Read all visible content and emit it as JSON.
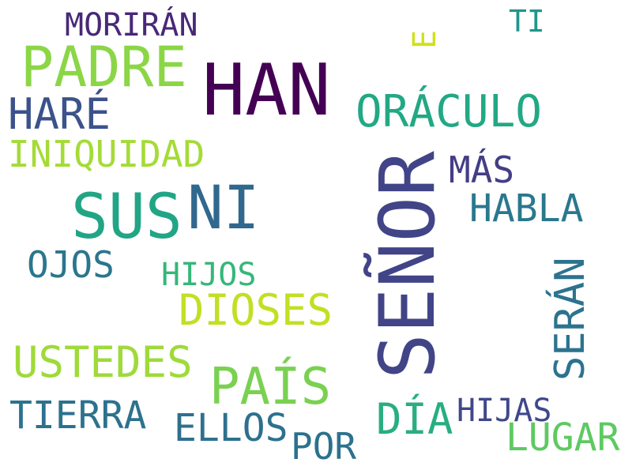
{
  "words": {
    "senor": {
      "text": "SEÑOR",
      "color": "#414487"
    },
    "han": {
      "text": "HAN",
      "color": "#440154"
    },
    "ni": {
      "text": "NI",
      "color": "#31688e"
    },
    "sus": {
      "text": "SUS",
      "color": "#21a585"
    },
    "padre": {
      "text": "PADRE",
      "color": "#8bd646"
    },
    "pais": {
      "text": "PAÍS",
      "color": "#7ad151"
    },
    "oraculo": {
      "text": "ORÁCULO",
      "color": "#22a884"
    },
    "dioses": {
      "text": "DIOSES",
      "color": "#c2df23"
    },
    "ustedes": {
      "text": "USTEDES",
      "color": "#9fda3a"
    },
    "dia": {
      "text": "DÍA",
      "color": "#28ae80"
    },
    "hare": {
      "text": "HARÉ",
      "color": "#3b528b"
    },
    "habla": {
      "text": "HABLA",
      "color": "#2a788e"
    },
    "tierra": {
      "text": "TIERRA",
      "color": "#2c728e"
    },
    "ellos": {
      "text": "ELLOS",
      "color": "#2d708e"
    },
    "lugar": {
      "text": "LUGAR",
      "color": "#5ec962"
    },
    "seran": {
      "text": "SERÁN",
      "color": "#2c738e"
    },
    "iniquidad": {
      "text": "INIQUIDAD",
      "color": "#a5db36"
    },
    "mas": {
      "text": "MÁS",
      "color": "#433e85"
    },
    "ojos": {
      "text": "OJOS",
      "color": "#2a768e"
    },
    "por": {
      "text": "POR",
      "color": "#2c718e"
    },
    "hijas": {
      "text": "HIJAS",
      "color": "#3f4889"
    },
    "moriran": {
      "text": "MORIRÁN",
      "color": "#482878"
    },
    "hijos": {
      "text": "HIJOS",
      "color": "#35b779"
    },
    "ti": {
      "text": "TI",
      "color": "#1f968b"
    },
    "e": {
      "text": "E",
      "color": "#d0e11c"
    }
  }
}
